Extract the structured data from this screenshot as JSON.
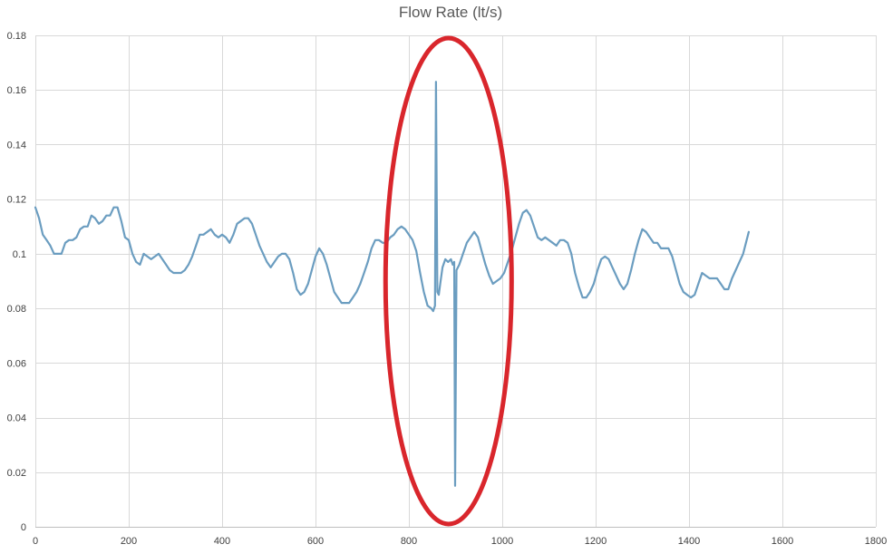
{
  "chart_data": {
    "type": "line",
    "title": "Flow Rate (lt/s)",
    "xlabel": "",
    "ylabel": "",
    "xlim": [
      0,
      1800
    ],
    "ylim": [
      0,
      0.18
    ],
    "x_ticks": [
      0,
      200,
      400,
      600,
      800,
      1000,
      1200,
      1400,
      1600,
      1800
    ],
    "y_ticks": [
      0,
      0.02,
      0.04,
      0.06,
      0.08,
      0.1,
      0.12,
      0.14,
      0.16,
      0.18
    ],
    "x_tick_labels": [
      "0",
      "200",
      "400",
      "600",
      "800",
      "1000",
      "1200",
      "1400",
      "1600",
      "1800"
    ],
    "y_tick_labels": [
      "0",
      "0.02",
      "0.04",
      "0.06",
      "0.08",
      "0.1",
      "0.12",
      "0.14",
      "0.16",
      "0.18"
    ],
    "grid": true,
    "legend": "none",
    "series": [
      {
        "color": "#6b9dc0",
        "points": [
          [
            0,
            0.117
          ],
          [
            8,
            0.113
          ],
          [
            16,
            0.107
          ],
          [
            24,
            0.105
          ],
          [
            32,
            0.103
          ],
          [
            40,
            0.1
          ],
          [
            48,
            0.1
          ],
          [
            56,
            0.1
          ],
          [
            64,
            0.104
          ],
          [
            72,
            0.105
          ],
          [
            80,
            0.105
          ],
          [
            88,
            0.106
          ],
          [
            96,
            0.109
          ],
          [
            104,
            0.11
          ],
          [
            112,
            0.11
          ],
          [
            120,
            0.114
          ],
          [
            128,
            0.113
          ],
          [
            136,
            0.111
          ],
          [
            144,
            0.112
          ],
          [
            152,
            0.114
          ],
          [
            160,
            0.114
          ],
          [
            168,
            0.117
          ],
          [
            176,
            0.117
          ],
          [
            184,
            0.112
          ],
          [
            192,
            0.106
          ],
          [
            200,
            0.105
          ],
          [
            208,
            0.1
          ],
          [
            216,
            0.097
          ],
          [
            224,
            0.096
          ],
          [
            232,
            0.1
          ],
          [
            240,
            0.099
          ],
          [
            248,
            0.098
          ],
          [
            256,
            0.099
          ],
          [
            264,
            0.1
          ],
          [
            272,
            0.098
          ],
          [
            280,
            0.096
          ],
          [
            288,
            0.094
          ],
          [
            296,
            0.093
          ],
          [
            304,
            0.093
          ],
          [
            312,
            0.093
          ],
          [
            320,
            0.094
          ],
          [
            328,
            0.096
          ],
          [
            336,
            0.099
          ],
          [
            344,
            0.103
          ],
          [
            352,
            0.107
          ],
          [
            360,
            0.107
          ],
          [
            368,
            0.108
          ],
          [
            376,
            0.109
          ],
          [
            384,
            0.107
          ],
          [
            392,
            0.106
          ],
          [
            400,
            0.107
          ],
          [
            408,
            0.106
          ],
          [
            416,
            0.104
          ],
          [
            424,
            0.107
          ],
          [
            432,
            0.111
          ],
          [
            440,
            0.112
          ],
          [
            448,
            0.113
          ],
          [
            456,
            0.113
          ],
          [
            464,
            0.111
          ],
          [
            472,
            0.107
          ],
          [
            480,
            0.103
          ],
          [
            488,
            0.1
          ],
          [
            496,
            0.097
          ],
          [
            504,
            0.095
          ],
          [
            512,
            0.097
          ],
          [
            520,
            0.099
          ],
          [
            528,
            0.1
          ],
          [
            536,
            0.1
          ],
          [
            544,
            0.098
          ],
          [
            552,
            0.093
          ],
          [
            560,
            0.087
          ],
          [
            568,
            0.085
          ],
          [
            576,
            0.086
          ],
          [
            584,
            0.089
          ],
          [
            592,
            0.094
          ],
          [
            600,
            0.099
          ],
          [
            608,
            0.102
          ],
          [
            616,
            0.1
          ],
          [
            624,
            0.096
          ],
          [
            632,
            0.091
          ],
          [
            640,
            0.086
          ],
          [
            648,
            0.084
          ],
          [
            656,
            0.082
          ],
          [
            664,
            0.082
          ],
          [
            672,
            0.082
          ],
          [
            680,
            0.084
          ],
          [
            688,
            0.086
          ],
          [
            696,
            0.089
          ],
          [
            704,
            0.093
          ],
          [
            712,
            0.097
          ],
          [
            720,
            0.102
          ],
          [
            728,
            0.105
          ],
          [
            736,
            0.105
          ],
          [
            744,
            0.104
          ],
          [
            752,
            0.104
          ],
          [
            760,
            0.106
          ],
          [
            768,
            0.107
          ],
          [
            776,
            0.109
          ],
          [
            784,
            0.11
          ],
          [
            792,
            0.109
          ],
          [
            800,
            0.107
          ],
          [
            808,
            0.105
          ],
          [
            816,
            0.101
          ],
          [
            824,
            0.093
          ],
          [
            832,
            0.086
          ],
          [
            840,
            0.081
          ],
          [
            848,
            0.08
          ],
          [
            852,
            0.079
          ],
          [
            856,
            0.081
          ],
          [
            858,
            0.163
          ],
          [
            861,
            0.086
          ],
          [
            864,
            0.085
          ],
          [
            868,
            0.09
          ],
          [
            872,
            0.095
          ],
          [
            878,
            0.098
          ],
          [
            884,
            0.097
          ],
          [
            890,
            0.098
          ],
          [
            894,
            0.096
          ],
          [
            897,
            0.097
          ],
          [
            899,
            0.015
          ],
          [
            902,
            0.094
          ],
          [
            908,
            0.096
          ],
          [
            916,
            0.1
          ],
          [
            924,
            0.104
          ],
          [
            932,
            0.106
          ],
          [
            940,
            0.108
          ],
          [
            948,
            0.106
          ],
          [
            956,
            0.101
          ],
          [
            964,
            0.096
          ],
          [
            972,
            0.092
          ],
          [
            980,
            0.089
          ],
          [
            988,
            0.09
          ],
          [
            996,
            0.091
          ],
          [
            1004,
            0.093
          ],
          [
            1012,
            0.097
          ],
          [
            1020,
            0.101
          ],
          [
            1028,
            0.106
          ],
          [
            1036,
            0.111
          ],
          [
            1044,
            0.115
          ],
          [
            1052,
            0.116
          ],
          [
            1060,
            0.114
          ],
          [
            1068,
            0.11
          ],
          [
            1076,
            0.106
          ],
          [
            1084,
            0.105
          ],
          [
            1092,
            0.106
          ],
          [
            1100,
            0.105
          ],
          [
            1108,
            0.104
          ],
          [
            1116,
            0.103
          ],
          [
            1124,
            0.105
          ],
          [
            1132,
            0.105
          ],
          [
            1140,
            0.104
          ],
          [
            1148,
            0.1
          ],
          [
            1156,
            0.093
          ],
          [
            1164,
            0.088
          ],
          [
            1172,
            0.084
          ],
          [
            1180,
            0.084
          ],
          [
            1188,
            0.086
          ],
          [
            1196,
            0.089
          ],
          [
            1204,
            0.094
          ],
          [
            1212,
            0.098
          ],
          [
            1220,
            0.099
          ],
          [
            1228,
            0.098
          ],
          [
            1236,
            0.095
          ],
          [
            1244,
            0.092
          ],
          [
            1252,
            0.089
          ],
          [
            1260,
            0.087
          ],
          [
            1268,
            0.089
          ],
          [
            1276,
            0.094
          ],
          [
            1284,
            0.1
          ],
          [
            1292,
            0.105
          ],
          [
            1300,
            0.109
          ],
          [
            1308,
            0.108
          ],
          [
            1316,
            0.106
          ],
          [
            1324,
            0.104
          ],
          [
            1332,
            0.104
          ],
          [
            1340,
            0.102
          ],
          [
            1348,
            0.102
          ],
          [
            1356,
            0.102
          ],
          [
            1364,
            0.099
          ],
          [
            1372,
            0.094
          ],
          [
            1380,
            0.089
          ],
          [
            1388,
            0.086
          ],
          [
            1396,
            0.085
          ],
          [
            1404,
            0.084
          ],
          [
            1412,
            0.085
          ],
          [
            1420,
            0.089
          ],
          [
            1428,
            0.093
          ],
          [
            1436,
            0.092
          ],
          [
            1444,
            0.091
          ],
          [
            1452,
            0.091
          ],
          [
            1460,
            0.091
          ],
          [
            1468,
            0.089
          ],
          [
            1476,
            0.087
          ],
          [
            1484,
            0.087
          ],
          [
            1492,
            0.091
          ],
          [
            1500,
            0.094
          ],
          [
            1508,
            0.097
          ],
          [
            1516,
            0.1
          ],
          [
            1522,
            0.104
          ],
          [
            1528,
            0.108
          ]
        ]
      }
    ],
    "annotations": [
      {
        "type": "ellipse",
        "color": "#d9262c",
        "x_center": 885,
        "y_center": 0.09,
        "x_radius": 135,
        "y_radius": 0.089
      }
    ]
  }
}
